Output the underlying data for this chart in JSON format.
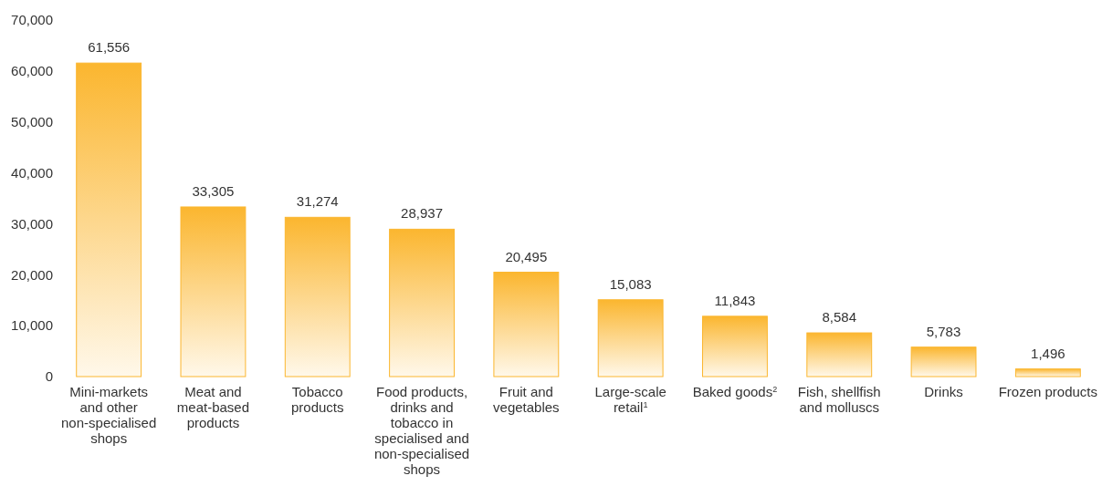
{
  "chart_data": {
    "type": "bar",
    "categories": [
      "Mini-markets and other non-specialised shops",
      "Meat and meat-based products",
      "Tobacco products",
      "Food products, drinks and tobacco in specialised and non-specialised shops",
      "Fruit and vegetables",
      "Large-scale retail$^{1}$",
      "Baked goods$^{2}$",
      "Fish, shellfish and molluscs",
      "Drinks",
      "Frozen products"
    ],
    "values": [
      61556,
      33305,
      31274,
      28937,
      20495,
      15083,
      11843,
      8584,
      5783,
      1496
    ],
    "color": "#fbb62f",
    "ylim": [
      0,
      70000
    ],
    "yticks": [
      {
        "value": 0,
        "label": "0"
      },
      {
        "value": 10000,
        "label": "10,000"
      },
      {
        "value": 20000,
        "label": "20,000"
      },
      {
        "value": 30000,
        "label": "30,000"
      },
      {
        "value": 40000,
        "label": "40,000"
      },
      {
        "value": 50000,
        "label": "50,000"
      },
      {
        "value": 60000,
        "label": "60,000"
      },
      {
        "value": 70000,
        "label": "70,000"
      }
    ],
    "value_labels": [
      "61,556",
      "33,305",
      "31,274",
      "28,937",
      "20,495",
      "15,083",
      "11,843",
      "8,584",
      "5,783",
      "1,496"
    ],
    "grid": false
  }
}
